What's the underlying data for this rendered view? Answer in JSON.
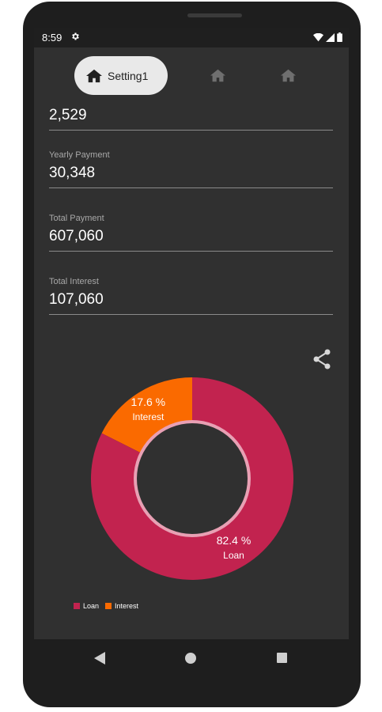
{
  "status_bar": {
    "time": "8:59"
  },
  "tabs": [
    {
      "label": "Setting1",
      "icon": "home-icon",
      "active": true
    },
    {
      "label": "",
      "icon": "home-icon",
      "active": false
    },
    {
      "label": "",
      "icon": "home-icon",
      "active": false
    }
  ],
  "fields": [
    {
      "label": "",
      "value": "2,529"
    },
    {
      "label": "Yearly Payment",
      "value": "30,348"
    },
    {
      "label": "Total Payment",
      "value": "607,060"
    },
    {
      "label": "Total Interest",
      "value": "107,060"
    }
  ],
  "chart_data": {
    "type": "pie",
    "series": [
      {
        "name": "Loan",
        "value": 82.4,
        "label": "82.4 %",
        "color": "#c2234f"
      },
      {
        "name": "Interest",
        "value": 17.6,
        "label": "17.6 %",
        "color": "#fa6a00"
      }
    ],
    "legend_position": "bottom-left",
    "hole_color": "#303030",
    "ring_color": "#e8a0b4"
  },
  "colors": {
    "background": "#303030",
    "status_bar": "#1f1f1f",
    "text_primary": "#ffffff",
    "text_secondary": "#a8a8a8"
  }
}
